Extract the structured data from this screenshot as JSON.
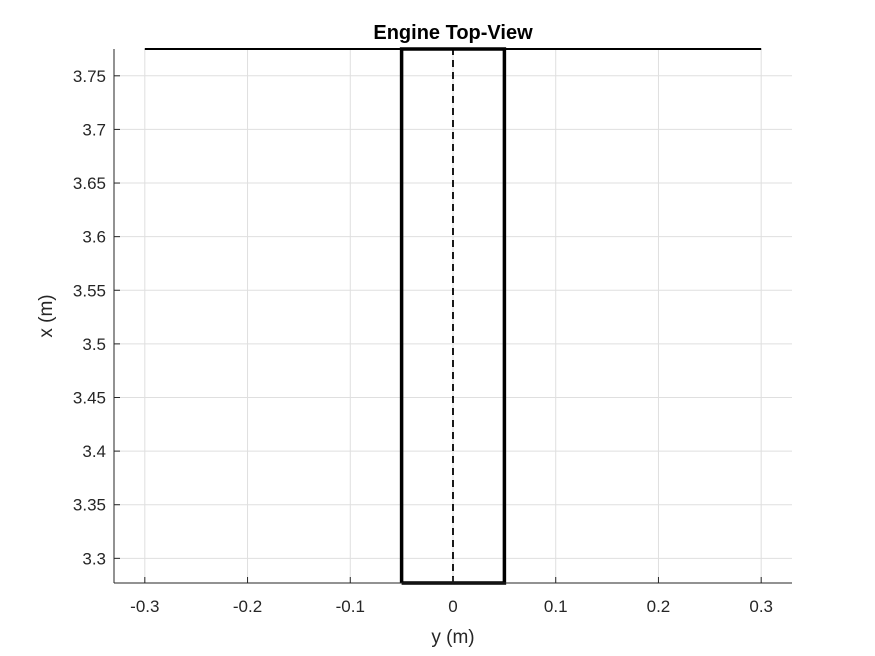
{
  "chart_data": {
    "type": "line",
    "title": "Engine Top-View",
    "xlabel": "y (m)",
    "ylabel": "x (m)",
    "xlim": [
      -0.33,
      0.33
    ],
    "ylim": [
      3.277,
      3.775
    ],
    "grid": true,
    "xticks": [
      -0.3,
      -0.2,
      -0.1,
      0,
      0.1,
      0.2,
      0.3
    ],
    "xtick_labels": [
      "-0.3",
      "-0.2",
      "-0.1",
      "0",
      "0.1",
      "0.2",
      "0.3"
    ],
    "yticks": [
      3.3,
      3.35,
      3.4,
      3.45,
      3.5,
      3.55,
      3.6,
      3.65,
      3.7,
      3.75
    ],
    "ytick_labels": [
      "3.3",
      "3.35",
      "3.4",
      "3.45",
      "3.5",
      "3.55",
      "3.6",
      "3.65",
      "3.7",
      "3.75"
    ],
    "series": [
      {
        "style": "solid",
        "color": "#000000",
        "x": [
          -0.3,
          0.3
        ],
        "y": [
          3.775,
          3.775
        ]
      },
      {
        "style": "solid-thick",
        "color": "#000000",
        "x": [
          -0.05,
          0.05,
          0.05,
          -0.05,
          -0.05
        ],
        "y": [
          3.277,
          3.277,
          3.775,
          3.775,
          3.277
        ]
      },
      {
        "style": "dashed",
        "color": "#000000",
        "x": [
          0,
          0
        ],
        "y": [
          3.277,
          3.775
        ]
      }
    ]
  }
}
